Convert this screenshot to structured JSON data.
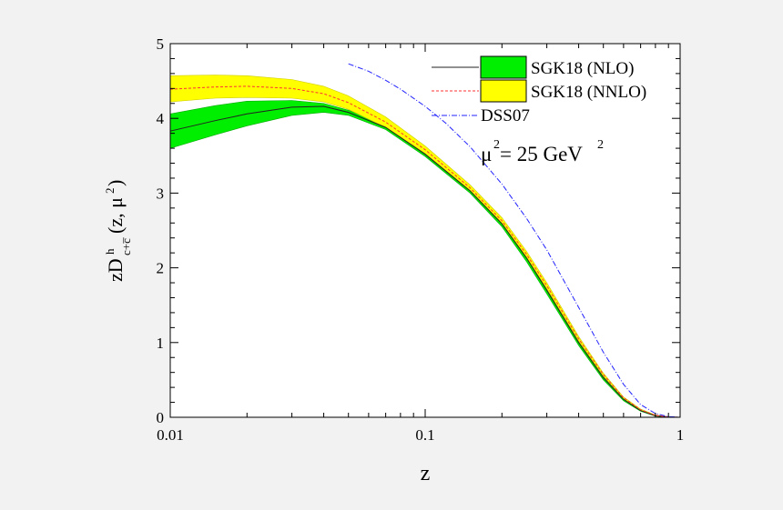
{
  "chart_data": {
    "type": "line",
    "xscale": "log",
    "xlim": [
      0.01,
      1
    ],
    "ylim": [
      0,
      5
    ],
    "xlabel": "z",
    "ylabel": {
      "prefix": "zD",
      "superscript": "h",
      "subscript": "c+c̅",
      "suffix": "(z, μ",
      "suffix_sup": "2",
      "suffix_end": ")"
    },
    "x_ticks": [
      {
        "value": 0.01,
        "label": "0.01"
      },
      {
        "value": 0.1,
        "label": "0.1"
      },
      {
        "value": 1,
        "label": "1"
      }
    ],
    "y_ticks": [
      {
        "value": 0,
        "label": "0"
      },
      {
        "value": 1,
        "label": "1"
      },
      {
        "value": 2,
        "label": "2"
      },
      {
        "value": 3,
        "label": "3"
      },
      {
        "value": 4,
        "label": "4"
      },
      {
        "value": 5,
        "label": "5"
      }
    ],
    "annotation": {
      "base": "μ",
      "sup1": "2",
      "mid": " = 25 GeV",
      "sup2": "2"
    },
    "series": [
      {
        "name": "SGK18 (NLO)",
        "color": "#222222",
        "band_color": "#00ee00",
        "band_edge": "#00aa00",
        "line_style": "solid",
        "x": [
          0.01,
          0.015,
          0.02,
          0.03,
          0.04,
          0.05,
          0.07,
          0.1,
          0.15,
          0.2,
          0.25,
          0.3,
          0.4,
          0.5,
          0.6,
          0.7,
          0.8,
          0.9,
          1.0
        ],
        "y": [
          3.83,
          3.97,
          4.06,
          4.15,
          4.16,
          4.08,
          3.88,
          3.52,
          3.03,
          2.59,
          2.13,
          1.7,
          1.0,
          0.53,
          0.24,
          0.09,
          0.02,
          0.003,
          0.0
        ],
        "lower": [
          3.6,
          3.78,
          3.9,
          4.04,
          4.08,
          4.04,
          3.85,
          3.49,
          3.0,
          2.55,
          2.08,
          1.65,
          0.96,
          0.5,
          0.22,
          0.08,
          0.015,
          0.002,
          0.0
        ],
        "upper": [
          4.06,
          4.17,
          4.23,
          4.24,
          4.2,
          4.11,
          3.91,
          3.56,
          3.07,
          2.63,
          2.18,
          1.75,
          1.04,
          0.56,
          0.26,
          0.1,
          0.025,
          0.004,
          0.0
        ]
      },
      {
        "name": "SGK18 (NNLO)",
        "color": "#ff3333",
        "band_color": "#ffff00",
        "band_edge": "#cccc00",
        "line_style": "dotted",
        "x": [
          0.01,
          0.015,
          0.02,
          0.03,
          0.04,
          0.05,
          0.07,
          0.1,
          0.15,
          0.2,
          0.25,
          0.3,
          0.4,
          0.5,
          0.6,
          0.7,
          0.8,
          0.9,
          1.0
        ],
        "y": [
          4.39,
          4.42,
          4.43,
          4.4,
          4.33,
          4.21,
          3.95,
          3.58,
          3.07,
          2.63,
          2.18,
          1.76,
          1.05,
          0.57,
          0.26,
          0.1,
          0.025,
          0.004,
          0.0
        ],
        "lower": [
          4.22,
          4.27,
          4.28,
          4.27,
          4.22,
          4.12,
          3.88,
          3.53,
          3.03,
          2.59,
          2.14,
          1.72,
          1.02,
          0.55,
          0.25,
          0.09,
          0.02,
          0.003,
          0.0
        ],
        "upper": [
          4.57,
          4.58,
          4.57,
          4.52,
          4.43,
          4.3,
          4.02,
          3.63,
          3.11,
          2.67,
          2.22,
          1.8,
          1.08,
          0.59,
          0.27,
          0.11,
          0.03,
          0.005,
          0.0
        ]
      },
      {
        "name": "DSS07",
        "color": "#2222ff",
        "line_style": "dashdot",
        "x": [
          0.05,
          0.06,
          0.07,
          0.08,
          0.1,
          0.12,
          0.15,
          0.2,
          0.25,
          0.3,
          0.4,
          0.5,
          0.6,
          0.7,
          0.8,
          0.9,
          1.0
        ],
        "y": [
          4.73,
          4.63,
          4.51,
          4.39,
          4.16,
          3.94,
          3.62,
          3.12,
          2.66,
          2.24,
          1.47,
          0.87,
          0.44,
          0.17,
          0.05,
          0.008,
          0.0
        ]
      }
    ]
  }
}
